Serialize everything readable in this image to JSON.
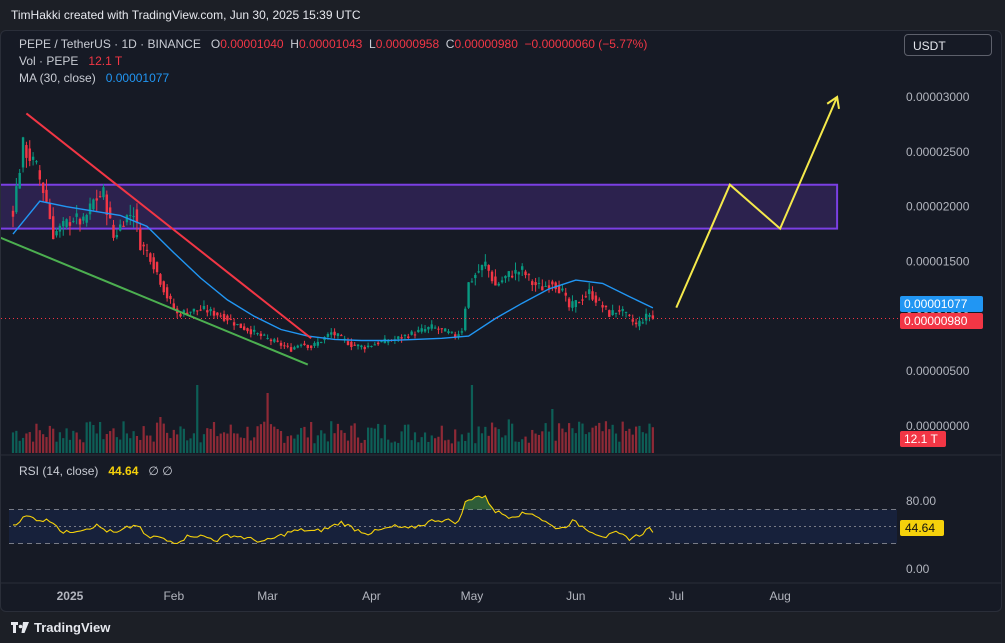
{
  "attribution": "TimHakki created with TradingView.com, Jun 30, 2025 15:39 UTC",
  "legend": {
    "symbol": "PEPE / TetherUS · 1D · BINANCE",
    "o_label": "O",
    "o_value": "0.00001040",
    "h_label": "H",
    "h_value": "0.00001043",
    "l_label": "L",
    "l_value": "0.00000958",
    "c_label": "C",
    "c_value": "0.00000980",
    "change": "−0.00000060 (−5.77%)",
    "vol_label": "Vol · PEPE",
    "vol_value": "12.1 T",
    "ma_label": "MA (30, close)",
    "ma_value": "0.00001077",
    "rsi_label": "RSI (14, close)",
    "rsi_value": "44.64",
    "rsi_icons": "∅  ∅"
  },
  "currency_button": "USDT",
  "badges": {
    "ma": "0.00001077",
    "close": "0.00000980",
    "volume": "12.1 T",
    "rsi": "44.64"
  },
  "footer_brand": "TradingView",
  "colors": {
    "up": "#089981",
    "down": "#f23645",
    "ma": "#2196f3",
    "rsi": "#f5d10b",
    "zone": "#7b3fe4",
    "downtrend": "#f23645",
    "support": "#4caf50",
    "projection": "#f5e94b"
  },
  "chart_data": {
    "type": "candlestick",
    "title": "PEPE / TetherUS · 1D · BINANCE",
    "price_axis": {
      "ticks": [
        "0.00003000",
        "0.00002500",
        "0.00002000",
        "0.00001500",
        "0.00001000",
        "0.00000500",
        "0.00000000"
      ],
      "tick_values": [
        3e-05,
        2.5e-05,
        2e-05,
        1.5e-05,
        1e-05,
        5e-06,
        0.0
      ],
      "ylim": [
        0.0,
        3e-05
      ]
    },
    "time_axis": {
      "ticks": [
        "2025",
        "Feb",
        "Mar",
        "Apr",
        "May",
        "Jun",
        "Jul",
        "Aug"
      ],
      "tick_days": [
        17,
        48,
        76,
        107,
        137,
        168,
        198,
        229
      ]
    },
    "price_path": [
      [
        0,
        1.97e-05
      ],
      [
        3,
        2.55e-05
      ],
      [
        7,
        2.35e-05
      ],
      [
        10,
        2.05e-05
      ],
      [
        12,
        1.75e-05
      ],
      [
        15,
        1.82e-05
      ],
      [
        18,
        1.9e-05
      ],
      [
        21,
        1.85e-05
      ],
      [
        24,
        2.05e-05
      ],
      [
        27,
        2.12e-05
      ],
      [
        30,
        1.72e-05
      ],
      [
        33,
        1.88e-05
      ],
      [
        36,
        1.96e-05
      ],
      [
        38,
        1.66e-05
      ],
      [
        41,
        1.55e-05
      ],
      [
        43,
        1.4e-05
      ],
      [
        46,
        1.18e-05
      ],
      [
        49,
        1.02e-05
      ],
      [
        53,
        1.05e-05
      ],
      [
        57,
        1.06e-05
      ],
      [
        61,
        1.02e-05
      ],
      [
        64,
        9.8e-06
      ],
      [
        67,
        9.2e-06
      ],
      [
        70,
        8.8e-06
      ],
      [
        74,
        8.2e-06
      ],
      [
        77,
        7.8e-06
      ],
      [
        80,
        7.4e-06
      ],
      [
        83,
        7e-06
      ],
      [
        86,
        7.6e-06
      ],
      [
        89,
        7.2e-06
      ],
      [
        92,
        7.8e-06
      ],
      [
        95,
        8.5e-06
      ],
      [
        98,
        8e-06
      ],
      [
        101,
        7.4e-06
      ],
      [
        105,
        7.2e-06
      ],
      [
        109,
        7.6e-06
      ],
      [
        113,
        7.8e-06
      ],
      [
        117,
        8.2e-06
      ],
      [
        121,
        8.6e-06
      ],
      [
        125,
        9e-06
      ],
      [
        129,
        8.6e-06
      ],
      [
        132,
        8.2e-06
      ],
      [
        134,
        8.8e-06
      ],
      [
        136,
        1.3e-05
      ],
      [
        138,
        1.38e-05
      ],
      [
        141,
        1.48e-05
      ],
      [
        144,
        1.28e-05
      ],
      [
        148,
        1.38e-05
      ],
      [
        152,
        1.42e-05
      ],
      [
        155,
        1.3e-05
      ],
      [
        158,
        1.26e-05
      ],
      [
        161,
        1.32e-05
      ],
      [
        164,
        1.22e-05
      ],
      [
        166,
        1.08e-05
      ],
      [
        168,
        1.12e-05
      ],
      [
        172,
        1.22e-05
      ],
      [
        175,
        1.12e-05
      ],
      [
        178,
        1.02e-05
      ],
      [
        181,
        1.06e-05
      ],
      [
        184,
        9.8e-06
      ],
      [
        186,
        9.2e-06
      ],
      [
        188,
        9.7e-06
      ],
      [
        190,
        1.02e-05
      ],
      [
        191,
        9.8e-06
      ]
    ],
    "ma_path": [
      [
        0,
        1.75e-05
      ],
      [
        8,
        2.05e-05
      ],
      [
        16,
        2e-05
      ],
      [
        24,
        1.96e-05
      ],
      [
        32,
        1.92e-05
      ],
      [
        40,
        1.82e-05
      ],
      [
        48,
        1.58e-05
      ],
      [
        56,
        1.35e-05
      ],
      [
        64,
        1.15e-05
      ],
      [
        72,
        1e-05
      ],
      [
        80,
        8.8e-06
      ],
      [
        88,
        8.2e-06
      ],
      [
        96,
        7.9e-06
      ],
      [
        104,
        7.8e-06
      ],
      [
        112,
        7.8e-06
      ],
      [
        120,
        7.9e-06
      ],
      [
        128,
        8e-06
      ],
      [
        136,
        8.2e-06
      ],
      [
        144,
        9.8e-06
      ],
      [
        152,
        1.12e-05
      ],
      [
        160,
        1.25e-05
      ],
      [
        168,
        1.33e-05
      ],
      [
        176,
        1.3e-05
      ],
      [
        184,
        1.18e-05
      ],
      [
        191,
        1.077e-05
      ]
    ],
    "ma_period": 30,
    "last_close": 9.8e-06,
    "last_ma": 1.077e-05,
    "resistance_zone": {
      "low": 1.8e-05,
      "high": 2.2e-05,
      "day_start": -4,
      "day_end": 246
    },
    "downtrend_line": [
      [
        4,
        2.85e-05
      ],
      [
        89,
        8e-06
      ]
    ],
    "support_line": [
      [
        -4,
        1.72e-05
      ],
      [
        88,
        5.6e-06
      ]
    ],
    "projection": [
      [
        198,
        1.08e-05
      ],
      [
        214,
        2.2e-05
      ],
      [
        229,
        1.8e-05
      ],
      [
        246,
        3e-05
      ]
    ],
    "volume": {
      "last": "12.1 T",
      "spikes": [
        [
          24,
          0.35
        ],
        [
          44,
          0.45
        ],
        [
          55,
          0.85
        ],
        [
          76,
          0.75
        ],
        [
          137,
          0.85
        ],
        [
          148,
          0.42
        ],
        [
          161,
          0.55
        ]
      ]
    },
    "rsi": {
      "period": 14,
      "last": 44.64,
      "ticks": [
        "80.00",
        "0.00"
      ],
      "tick_values": [
        80,
        0
      ],
      "bands": [
        70,
        50,
        30
      ],
      "ylim": [
        0,
        100
      ],
      "path": [
        [
          0,
          52
        ],
        [
          4,
          62
        ],
        [
          8,
          58
        ],
        [
          12,
          56
        ],
        [
          15,
          42
        ],
        [
          18,
          45
        ],
        [
          22,
          48
        ],
        [
          25,
          51
        ],
        [
          28,
          45
        ],
        [
          31,
          42
        ],
        [
          34,
          48
        ],
        [
          37,
          52
        ],
        [
          40,
          37
        ],
        [
          43,
          38
        ],
        [
          46,
          33
        ],
        [
          49,
          32
        ],
        [
          53,
          40
        ],
        [
          57,
          38
        ],
        [
          61,
          34
        ],
        [
          64,
          40
        ],
        [
          68,
          38
        ],
        [
          71,
          35
        ],
        [
          75,
          32
        ],
        [
          79,
          38
        ],
        [
          83,
          44
        ],
        [
          87,
          46
        ],
        [
          90,
          44
        ],
        [
          94,
          48
        ],
        [
          98,
          55
        ],
        [
          102,
          47
        ],
        [
          106,
          42
        ],
        [
          110,
          46
        ],
        [
          114,
          50
        ],
        [
          118,
          47
        ],
        [
          122,
          52
        ],
        [
          126,
          58
        ],
        [
          130,
          57
        ],
        [
          133,
          55
        ],
        [
          135,
          78
        ],
        [
          138,
          86
        ],
        [
          141,
          84
        ],
        [
          144,
          68
        ],
        [
          148,
          62
        ],
        [
          151,
          64
        ],
        [
          155,
          66
        ],
        [
          158,
          58
        ],
        [
          161,
          50
        ],
        [
          164,
          48
        ],
        [
          167,
          56
        ],
        [
          170,
          50
        ],
        [
          174,
          42
        ],
        [
          177,
          38
        ],
        [
          180,
          42
        ],
        [
          184,
          36
        ],
        [
          187,
          40
        ],
        [
          190,
          48
        ],
        [
          191,
          45
        ]
      ]
    }
  }
}
